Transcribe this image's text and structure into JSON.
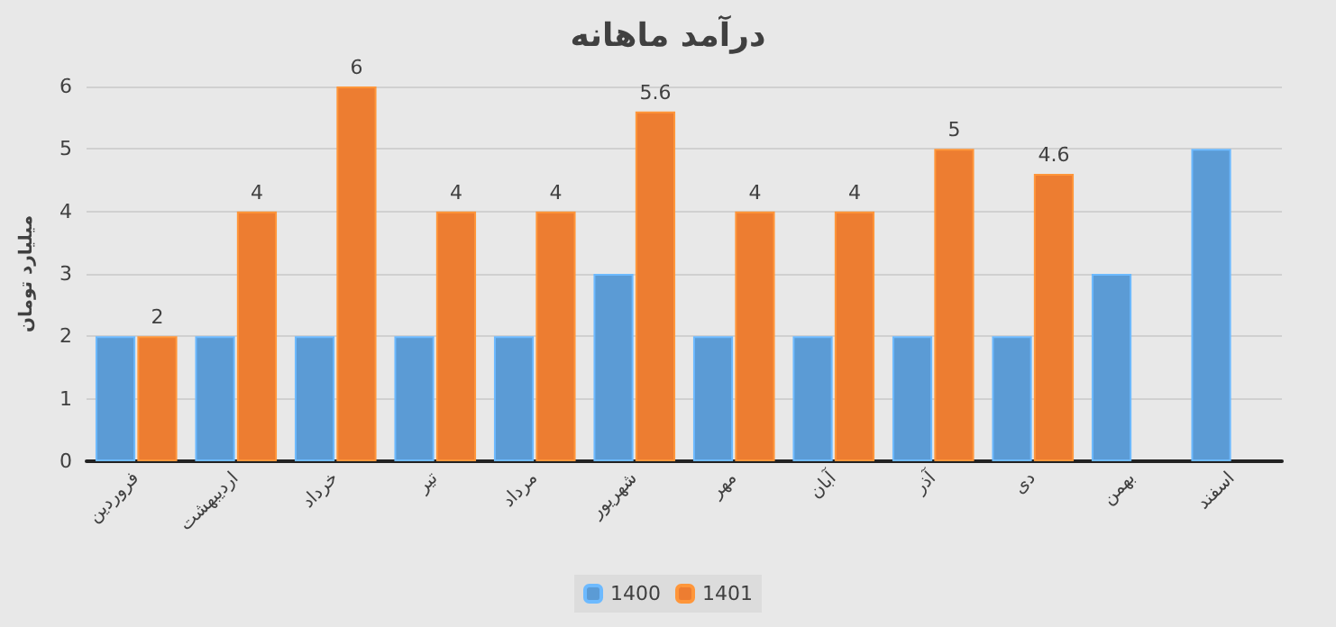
{
  "chart_data": {
    "type": "bar",
    "title": "درآمد ماهانه",
    "ylabel": "میلیارد تومان",
    "categories": [
      "فروردین",
      "اردیبهشت",
      "خرداد",
      "تیر",
      "مرداد",
      "شهریور",
      "مهر",
      "آبان",
      "آذر",
      "دی",
      "بهمن",
      "اسفند"
    ],
    "series": [
      {
        "name": "1400",
        "color": "#5b9bd5",
        "values": [
          2,
          2,
          2,
          2,
          2,
          3,
          2,
          2,
          2,
          2,
          3,
          5
        ]
      },
      {
        "name": "1401",
        "color": "#ed7d31",
        "values": [
          2,
          4,
          6,
          4,
          4,
          5.6,
          4,
          4,
          5,
          4.6,
          null,
          null
        ],
        "value_labels": [
          "2",
          "4",
          "6",
          "4",
          "4",
          "5.6",
          "4",
          "4",
          "5",
          "4.6",
          null,
          null
        ]
      }
    ],
    "ylim": [
      0,
      6
    ],
    "yticks": [
      0,
      1,
      2,
      3,
      4,
      5,
      6
    ],
    "grid": "y",
    "legend": "bottom"
  }
}
